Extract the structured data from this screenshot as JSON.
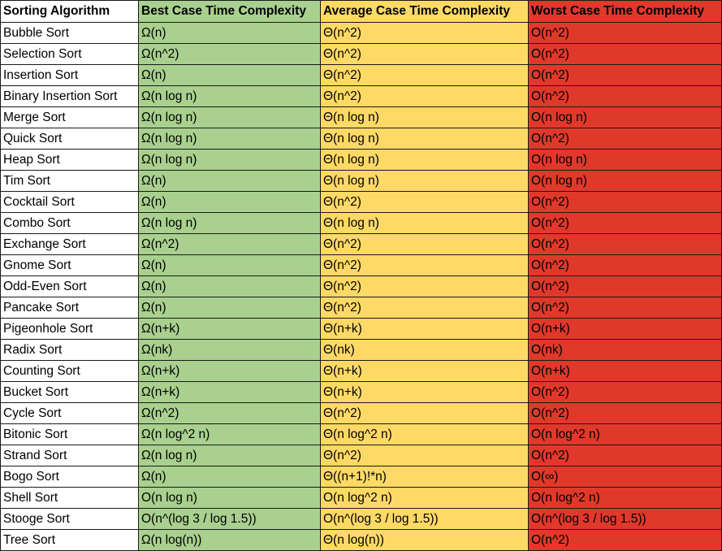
{
  "colors": {
    "best": "#a9d08e",
    "average": "#ffd966",
    "worst": "#e0392b",
    "name": "#ffffff"
  },
  "headers": {
    "algorithm": "Sorting Algorithm",
    "best": "Best Case Time Complexity",
    "average": "Average Case Time Complexity",
    "worst": "Worst Case Time Complexity"
  },
  "rows": [
    {
      "name": "Bubble Sort",
      "best": "Ω(n)",
      "average": "Θ(n^2)",
      "worst": "O(n^2)"
    },
    {
      "name": "Selection Sort",
      "best": "Ω(n^2)",
      "average": "Θ(n^2)",
      "worst": "O(n^2)"
    },
    {
      "name": "Insertion Sort",
      "best": "Ω(n)",
      "average": "Θ(n^2)",
      "worst": "O(n^2)"
    },
    {
      "name": "Binary Insertion Sort",
      "best": "Ω(n log n)",
      "average": "Θ(n^2)",
      "worst": "O(n^2)"
    },
    {
      "name": "Merge Sort",
      "best": "Ω(n log n)",
      "average": "Θ(n log n)",
      "worst": "O(n log n)"
    },
    {
      "name": "Quick Sort",
      "best": "Ω(n log n)",
      "average": "Θ(n log n)",
      "worst": "O(n^2)"
    },
    {
      "name": "Heap Sort",
      "best": "Ω(n log n)",
      "average": "Θ(n log n)",
      "worst": "O(n log n)"
    },
    {
      "name": "Tim Sort",
      "best": "Ω(n)",
      "average": "Θ(n log n)",
      "worst": "O(n log n)"
    },
    {
      "name": "Cocktail Sort",
      "best": "Ω(n)",
      "average": "Θ(n^2)",
      "worst": "O(n^2)"
    },
    {
      "name": "Combo Sort",
      "best": "Ω(n log n)",
      "average": "Θ(n log n)",
      "worst": "O(n^2)"
    },
    {
      "name": "Exchange Sort",
      "best": "Ω(n^2)",
      "average": "Θ(n^2)",
      "worst": "O(n^2)"
    },
    {
      "name": "Gnome Sort",
      "best": "Ω(n)",
      "average": "Θ(n^2)",
      "worst": "O(n^2)"
    },
    {
      "name": "Odd-Even Sort",
      "best": "Ω(n)",
      "average": "Θ(n^2)",
      "worst": "O(n^2)"
    },
    {
      "name": "Pancake Sort",
      "best": "Ω(n)",
      "average": "Θ(n^2)",
      "worst": "O(n^2)"
    },
    {
      "name": "Pigeonhole Sort",
      "best": "Ω(n+k)",
      "average": "Θ(n+k)",
      "worst": "O(n+k)"
    },
    {
      "name": "Radix Sort",
      "best": "Ω(nk)",
      "average": "Θ(nk)",
      "worst": "O(nk)"
    },
    {
      "name": "Counting Sort",
      "best": "Ω(n+k)",
      "average": "Θ(n+k)",
      "worst": "O(n+k)"
    },
    {
      "name": "Bucket Sort",
      "best": "Ω(n+k)",
      "average": "Θ(n+k)",
      "worst": "O(n^2)"
    },
    {
      "name": "Cycle Sort",
      "best": "Ω(n^2)",
      "average": "Θ(n^2)",
      "worst": "O(n^2)"
    },
    {
      "name": "Bitonic Sort",
      "best": "Ω(n log^2 n)",
      "average": "Θ(n log^2 n)",
      "worst": "O(n log^2 n)"
    },
    {
      "name": "Strand Sort",
      "best": "Ω(n log n)",
      "average": "Θ(n^2)",
      "worst": "O(n^2)"
    },
    {
      "name": "Bogo Sort",
      "best": "Ω(n)",
      "average": "Θ((n+1)!*n)",
      "worst": "O(∞)"
    },
    {
      "name": "Shell Sort",
      "best": "O(n log n)",
      "average": "O(n log^2 n)",
      "worst": "O(n log^2 n)"
    },
    {
      "name": "Stooge Sort",
      "best": "O(n^(log 3 / log 1.5))",
      "average": "O(n^(log 3 / log 1.5))",
      "worst": "O(n^(log 3 / log 1.5))"
    },
    {
      "name": "Tree Sort",
      "best": "Ω(n log(n))",
      "average": "Θ(n log(n))",
      "worst": "O(n^2)"
    }
  ]
}
